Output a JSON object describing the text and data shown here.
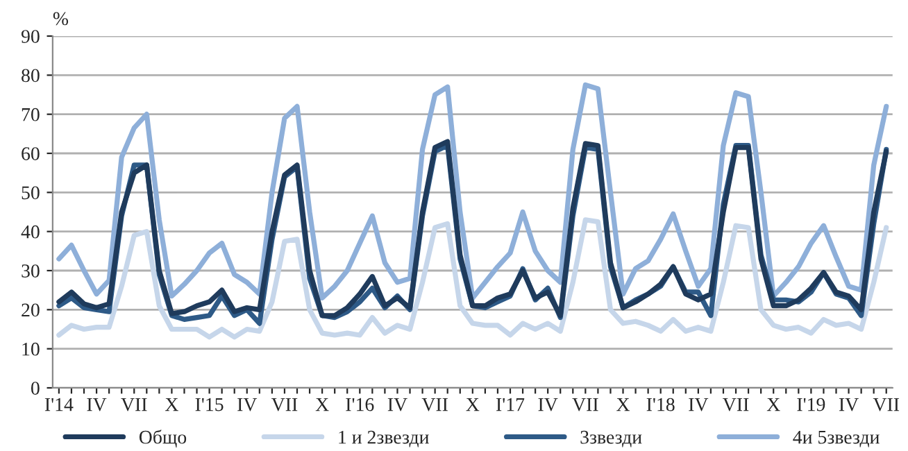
{
  "chart_data": {
    "type": "line",
    "ylabel": "%",
    "categories": [
      "I'14",
      null,
      null,
      "IV",
      null,
      null,
      "VII",
      null,
      null,
      "X",
      null,
      null,
      "I'15",
      null,
      null,
      "IV",
      null,
      null,
      "VII",
      null,
      null,
      "X",
      null,
      null,
      "I'16",
      null,
      null,
      "IV",
      null,
      null,
      "VII",
      null,
      null,
      "X",
      null,
      null,
      "I'17",
      null,
      null,
      "IV",
      null,
      null,
      "VII",
      null,
      null,
      "X",
      null,
      null,
      "I'18",
      null,
      null,
      "IV",
      null,
      null,
      "VII",
      null,
      null,
      "X",
      null,
      null,
      "I'19",
      null,
      null,
      "IV",
      null,
      null,
      "VII"
    ],
    "series": [
      {
        "name": "Общо",
        "color": "#1f3b5c",
        "values": [
          22,
          24.5,
          21.5,
          20.5,
          21.5,
          45,
          55,
          57,
          30,
          19,
          19.5,
          21,
          22,
          25,
          19.5,
          20.5,
          20,
          40,
          54.5,
          57,
          30,
          18.5,
          18.5,
          20.5,
          24,
          28.5,
          21,
          23,
          20.5,
          45,
          61.5,
          63,
          34,
          21,
          21,
          23,
          24,
          30,
          23,
          24.5,
          18.5,
          46,
          62.5,
          62,
          32,
          20.5,
          22,
          24,
          26.5,
          31,
          24,
          22.5,
          24,
          45,
          61.5,
          61.5,
          33,
          21,
          21,
          22.5,
          25.5,
          29.5,
          24.5,
          23.5,
          20,
          45,
          60.5
        ]
      },
      {
        "name": "1 и 2звезди",
        "color": "#c6d6ea",
        "values": [
          13.5,
          16,
          15,
          15.5,
          15.5,
          26,
          39,
          40,
          21,
          15,
          15,
          15,
          13,
          15,
          13,
          15,
          14.5,
          22,
          37.5,
          38,
          20,
          14,
          13.5,
          14,
          13.5,
          18,
          14,
          16,
          15,
          27,
          41,
          42,
          21,
          16.5,
          16,
          16,
          13.5,
          16.5,
          15,
          16.5,
          14.5,
          27,
          43,
          42.5,
          20,
          16.5,
          17,
          16,
          14.5,
          17.5,
          14.5,
          15.5,
          14.5,
          27,
          41.5,
          41,
          20,
          16,
          15,
          15.5,
          14,
          17.5,
          16,
          16.5,
          15,
          27,
          41
        ]
      },
      {
        "name": "3звезди",
        "color": "#2e5a87",
        "values": [
          21,
          23,
          20.5,
          20,
          19.5,
          44,
          57,
          57,
          29,
          18.5,
          17.5,
          18,
          18.5,
          23.5,
          18.5,
          20,
          16.5,
          38,
          54,
          56.5,
          28,
          18.5,
          18,
          19.5,
          22,
          25.5,
          20.5,
          23.5,
          20,
          44,
          60.5,
          62,
          33,
          21,
          20.5,
          22,
          23.5,
          30.5,
          22.5,
          25.5,
          18,
          44,
          61.5,
          61,
          31,
          20.5,
          22.5,
          24,
          26,
          31,
          24.5,
          24.5,
          18.5,
          47,
          62,
          62,
          34,
          22.5,
          22.5,
          22,
          24.5,
          29.5,
          24,
          23,
          18.5,
          42,
          61
        ]
      },
      {
        "name": "4и 5звезди",
        "color": "#8eafd9",
        "values": [
          33,
          36.5,
          30,
          24,
          27.5,
          59,
          66.5,
          70,
          43,
          23.5,
          26.5,
          30,
          34.5,
          37,
          29,
          27,
          24,
          50,
          69,
          72,
          45,
          23,
          26,
          30,
          37,
          44,
          32,
          27,
          28,
          61,
          75,
          77,
          45,
          23,
          27,
          31,
          34.5,
          45,
          35,
          30,
          27,
          61,
          77.5,
          76.5,
          50,
          24,
          30.5,
          32.5,
          38,
          44.5,
          35,
          26,
          30.5,
          62,
          75.5,
          74.5,
          50,
          23.5,
          27,
          31,
          37,
          41.5,
          33.5,
          26,
          25,
          57,
          72
        ]
      }
    ],
    "ylim": [
      0,
      90
    ],
    "yticks": [
      0,
      10,
      20,
      30,
      40,
      50,
      60,
      70,
      80,
      90
    ],
    "grid": "y",
    "legend": "bottom",
    "line_style": "solid",
    "marker": "none"
  }
}
